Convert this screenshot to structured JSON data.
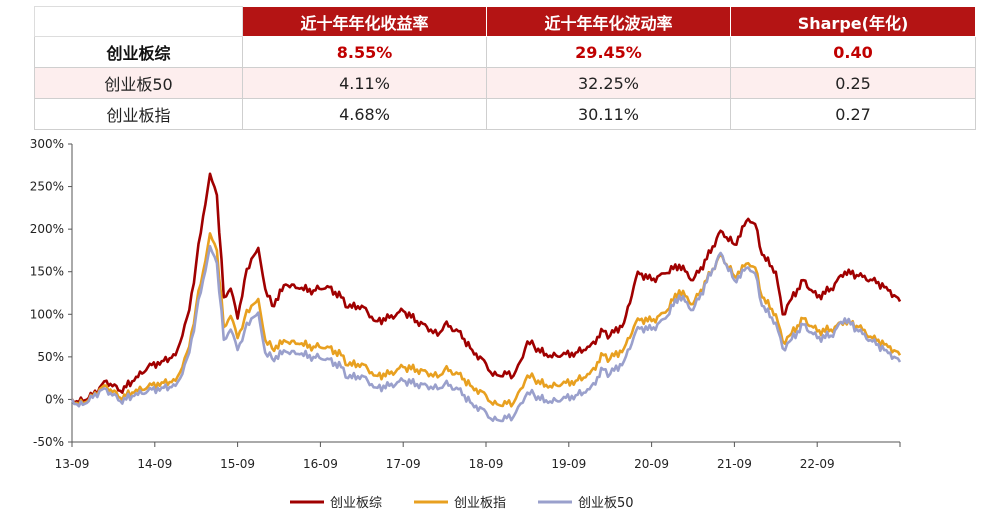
{
  "table": {
    "headers": [
      "",
      "近十年年化收益率",
      "近十年年化波动率",
      "Sharpe(年化)"
    ],
    "rows": [
      {
        "name": "创业板综",
        "ret": "8.55%",
        "vol": "29.45%",
        "sharpe": "0.40",
        "highlight": true
      },
      {
        "name": "创业板50",
        "ret": "4.11%",
        "vol": "32.25%",
        "sharpe": "0.25",
        "highlight": false
      },
      {
        "name": "创业板指",
        "ret": "4.68%",
        "vol": "30.11%",
        "sharpe": "0.27",
        "highlight": false
      }
    ]
  },
  "chart_data": {
    "type": "line",
    "title": "",
    "xlabel": "",
    "ylabel": "",
    "ylim": [
      -50,
      300
    ],
    "y_unit": "%",
    "yticks": [
      -50,
      0,
      50,
      100,
      150,
      200,
      250,
      300
    ],
    "ytick_labels": [
      "-50%",
      "0%",
      "50%",
      "100%",
      "150%",
      "200%",
      "250%",
      "300%"
    ],
    "xticks": [
      "13-09",
      "14-09",
      "15-09",
      "16-09",
      "17-09",
      "18-09",
      "19-09",
      "20-09",
      "21-09",
      "22-09"
    ],
    "xlim": [
      "2013-09",
      "2023-09"
    ],
    "grid": false,
    "legend_position": "bottom",
    "series": [
      {
        "name": "创业板综",
        "color": "#a00000",
        "points": [
          [
            "2013-09",
            0
          ],
          [
            "2013-10",
            -3
          ],
          [
            "2013-12",
            5
          ],
          [
            "2014-01",
            14
          ],
          [
            "2014-02",
            22
          ],
          [
            "2014-04",
            10
          ],
          [
            "2014-06",
            22
          ],
          [
            "2014-08",
            38
          ],
          [
            "2014-10",
            45
          ],
          [
            "2014-12",
            52
          ],
          [
            "2015-01",
            75
          ],
          [
            "2015-02",
            105
          ],
          [
            "2015-03",
            160
          ],
          [
            "2015-04",
            215
          ],
          [
            "2015-05",
            265
          ],
          [
            "2015-06",
            240
          ],
          [
            "2015-07",
            120
          ],
          [
            "2015-08",
            130
          ],
          [
            "2015-09",
            95
          ],
          [
            "2015-10",
            140
          ],
          [
            "2015-11",
            165
          ],
          [
            "2015-12",
            178
          ],
          [
            "2016-01",
            130
          ],
          [
            "2016-02",
            110
          ],
          [
            "2016-04",
            135
          ],
          [
            "2016-06",
            130
          ],
          [
            "2016-08",
            128
          ],
          [
            "2016-10",
            133
          ],
          [
            "2016-12",
            120
          ],
          [
            "2017-01",
            108
          ],
          [
            "2017-03",
            110
          ],
          [
            "2017-05",
            92
          ],
          [
            "2017-07",
            96
          ],
          [
            "2017-09",
            104
          ],
          [
            "2017-11",
            92
          ],
          [
            "2018-01",
            82
          ],
          [
            "2018-02",
            75
          ],
          [
            "2018-03",
            88
          ],
          [
            "2018-05",
            80
          ],
          [
            "2018-07",
            58
          ],
          [
            "2018-09",
            42
          ],
          [
            "2018-10",
            28
          ],
          [
            "2018-12",
            30
          ],
          [
            "2019-01",
            28
          ],
          [
            "2019-02",
            45
          ],
          [
            "2019-03",
            68
          ],
          [
            "2019-04",
            62
          ],
          [
            "2019-06",
            50
          ],
          [
            "2019-08",
            52
          ],
          [
            "2019-10",
            55
          ],
          [
            "2019-12",
            62
          ],
          [
            "2020-02",
            80
          ],
          [
            "2020-03",
            75
          ],
          [
            "2020-05",
            90
          ],
          [
            "2020-07",
            150
          ],
          [
            "2020-09",
            140
          ],
          [
            "2020-11",
            148
          ],
          [
            "2021-01",
            158
          ],
          [
            "2021-03",
            140
          ],
          [
            "2021-05",
            165
          ],
          [
            "2021-07",
            198
          ],
          [
            "2021-09",
            182
          ],
          [
            "2021-11",
            212
          ],
          [
            "2021-12",
            206
          ],
          [
            "2022-01",
            170
          ],
          [
            "2022-03",
            150
          ],
          [
            "2022-04",
            100
          ],
          [
            "2022-05",
            115
          ],
          [
            "2022-07",
            140
          ],
          [
            "2022-09",
            120
          ],
          [
            "2022-11",
            130
          ],
          [
            "2023-01",
            150
          ],
          [
            "2023-03",
            145
          ],
          [
            "2023-05",
            140
          ],
          [
            "2023-07",
            132
          ],
          [
            "2023-09",
            115
          ]
        ]
      },
      {
        "name": "创业板指",
        "color": "#e8a020",
        "points": [
          [
            "2013-09",
            0
          ],
          [
            "2013-10",
            -6
          ],
          [
            "2013-12",
            3
          ],
          [
            "2014-01",
            12
          ],
          [
            "2014-02",
            16
          ],
          [
            "2014-04",
            2
          ],
          [
            "2014-06",
            8
          ],
          [
            "2014-08",
            15
          ],
          [
            "2014-10",
            20
          ],
          [
            "2014-12",
            22
          ],
          [
            "2015-01",
            38
          ],
          [
            "2015-02",
            62
          ],
          [
            "2015-03",
            110
          ],
          [
            "2015-04",
            150
          ],
          [
            "2015-05",
            195
          ],
          [
            "2015-06",
            175
          ],
          [
            "2015-07",
            85
          ],
          [
            "2015-08",
            98
          ],
          [
            "2015-09",
            72
          ],
          [
            "2015-10",
            95
          ],
          [
            "2015-11",
            110
          ],
          [
            "2015-12",
            118
          ],
          [
            "2016-01",
            70
          ],
          [
            "2016-02",
            60
          ],
          [
            "2016-04",
            68
          ],
          [
            "2016-06",
            65
          ],
          [
            "2016-08",
            62
          ],
          [
            "2016-10",
            62
          ],
          [
            "2016-12",
            52
          ],
          [
            "2017-01",
            40
          ],
          [
            "2017-03",
            42
          ],
          [
            "2017-05",
            28
          ],
          [
            "2017-07",
            30
          ],
          [
            "2017-09",
            38
          ],
          [
            "2017-11",
            35
          ],
          [
            "2018-01",
            30
          ],
          [
            "2018-02",
            26
          ],
          [
            "2018-03",
            35
          ],
          [
            "2018-05",
            30
          ],
          [
            "2018-07",
            15
          ],
          [
            "2018-09",
            5
          ],
          [
            "2018-10",
            -6
          ],
          [
            "2018-12",
            -5
          ],
          [
            "2019-01",
            -4
          ],
          [
            "2019-02",
            12
          ],
          [
            "2019-03",
            28
          ],
          [
            "2019-04",
            24
          ],
          [
            "2019-06",
            14
          ],
          [
            "2019-08",
            18
          ],
          [
            "2019-10",
            22
          ],
          [
            "2019-12",
            30
          ],
          [
            "2020-02",
            52
          ],
          [
            "2020-03",
            48
          ],
          [
            "2020-05",
            60
          ],
          [
            "2020-07",
            95
          ],
          [
            "2020-09",
            92
          ],
          [
            "2020-11",
            102
          ],
          [
            "2021-01",
            128
          ],
          [
            "2021-03",
            112
          ],
          [
            "2021-05",
            140
          ],
          [
            "2021-07",
            170
          ],
          [
            "2021-09",
            145
          ],
          [
            "2021-11",
            160
          ],
          [
            "2021-12",
            155
          ],
          [
            "2022-01",
            120
          ],
          [
            "2022-03",
            100
          ],
          [
            "2022-04",
            68
          ],
          [
            "2022-05",
            75
          ],
          [
            "2022-07",
            95
          ],
          [
            "2022-09",
            80
          ],
          [
            "2022-11",
            82
          ],
          [
            "2023-01",
            92
          ],
          [
            "2023-03",
            85
          ],
          [
            "2023-05",
            72
          ],
          [
            "2023-07",
            65
          ],
          [
            "2023-09",
            52
          ]
        ]
      },
      {
        "name": "创业板50",
        "color": "#9aa0cc",
        "points": [
          [
            "2013-09",
            0
          ],
          [
            "2013-10",
            -8
          ],
          [
            "2013-12",
            2
          ],
          [
            "2014-01",
            10
          ],
          [
            "2014-02",
            12
          ],
          [
            "2014-04",
            -2
          ],
          [
            "2014-06",
            4
          ],
          [
            "2014-08",
            10
          ],
          [
            "2014-10",
            14
          ],
          [
            "2014-12",
            16
          ],
          [
            "2015-01",
            30
          ],
          [
            "2015-02",
            55
          ],
          [
            "2015-03",
            100
          ],
          [
            "2015-04",
            140
          ],
          [
            "2015-05",
            180
          ],
          [
            "2015-06",
            160
          ],
          [
            "2015-07",
            70
          ],
          [
            "2015-08",
            82
          ],
          [
            "2015-09",
            58
          ],
          [
            "2015-10",
            80
          ],
          [
            "2015-11",
            95
          ],
          [
            "2015-12",
            102
          ],
          [
            "2016-01",
            55
          ],
          [
            "2016-02",
            48
          ],
          [
            "2016-04",
            56
          ],
          [
            "2016-06",
            53
          ],
          [
            "2016-08",
            50
          ],
          [
            "2016-10",
            48
          ],
          [
            "2016-12",
            38
          ],
          [
            "2017-01",
            25
          ],
          [
            "2017-03",
            28
          ],
          [
            "2017-05",
            14
          ],
          [
            "2017-07",
            16
          ],
          [
            "2017-09",
            22
          ],
          [
            "2017-11",
            18
          ],
          [
            "2018-01",
            15
          ],
          [
            "2018-02",
            12
          ],
          [
            "2018-03",
            18
          ],
          [
            "2018-05",
            12
          ],
          [
            "2018-07",
            -5
          ],
          [
            "2018-09",
            -15
          ],
          [
            "2018-10",
            -25
          ],
          [
            "2018-12",
            -22
          ],
          [
            "2019-01",
            -20
          ],
          [
            "2019-02",
            -5
          ],
          [
            "2019-03",
            8
          ],
          [
            "2019-04",
            5
          ],
          [
            "2019-06",
            -4
          ],
          [
            "2019-08",
            0
          ],
          [
            "2019-10",
            5
          ],
          [
            "2019-12",
            12
          ],
          [
            "2020-02",
            35
          ],
          [
            "2020-03",
            30
          ],
          [
            "2020-05",
            45
          ],
          [
            "2020-07",
            85
          ],
          [
            "2020-09",
            82
          ],
          [
            "2020-11",
            95
          ],
          [
            "2021-01",
            122
          ],
          [
            "2021-03",
            105
          ],
          [
            "2021-05",
            138
          ],
          [
            "2021-07",
            172
          ],
          [
            "2021-09",
            140
          ],
          [
            "2021-11",
            155
          ],
          [
            "2021-12",
            148
          ],
          [
            "2022-01",
            110
          ],
          [
            "2022-03",
            90
          ],
          [
            "2022-04",
            60
          ],
          [
            "2022-05",
            68
          ],
          [
            "2022-07",
            88
          ],
          [
            "2022-09",
            72
          ],
          [
            "2022-11",
            75
          ],
          [
            "2023-01",
            95
          ],
          [
            "2023-03",
            80
          ],
          [
            "2023-05",
            68
          ],
          [
            "2023-07",
            58
          ],
          [
            "2023-09",
            44
          ]
        ]
      }
    ]
  }
}
